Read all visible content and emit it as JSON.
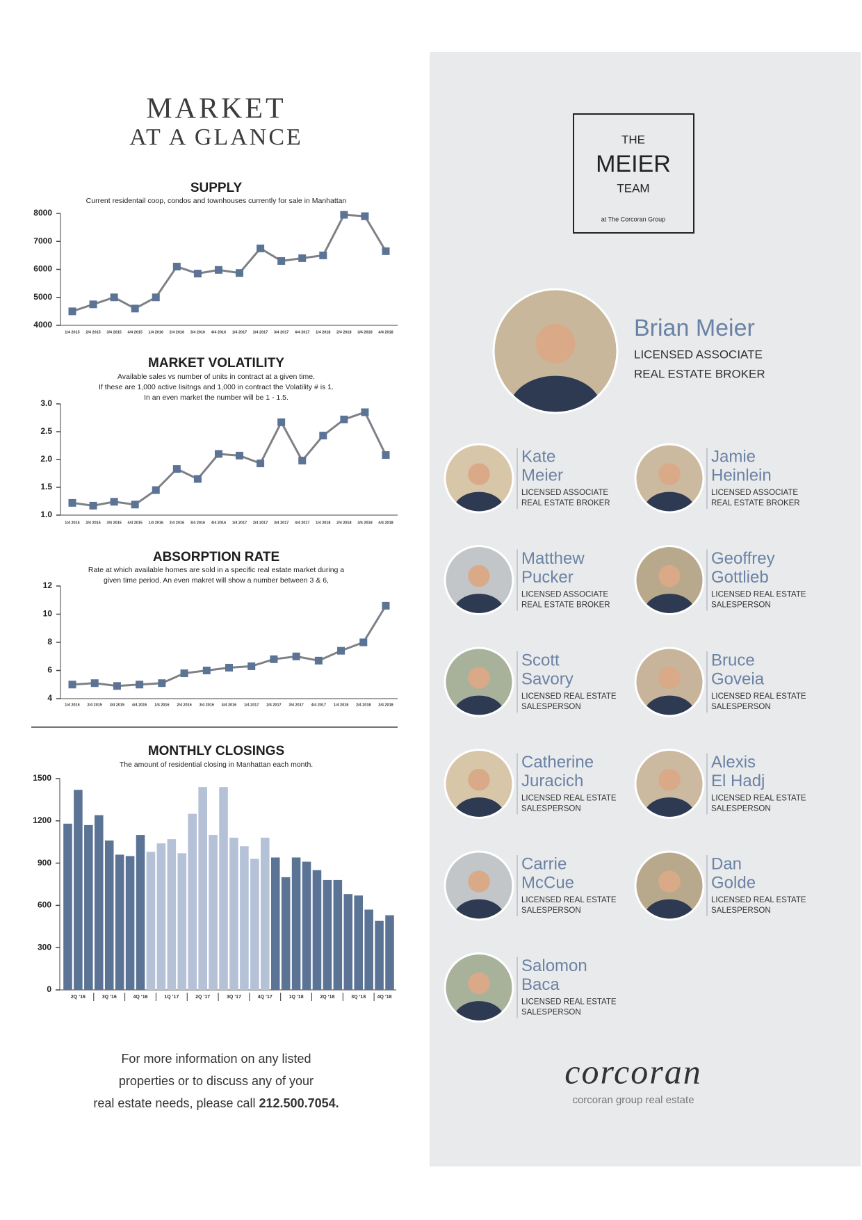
{
  "header": {
    "title_line1": "MARKET",
    "title_line2": "AT A GLANCE"
  },
  "chart_data": [
    {
      "type": "line",
      "title": "SUPPLY",
      "subtitle": [
        "Current residentail coop, condos and townhouses currently for sale in Manhattan"
      ],
      "categories": [
        "1/4 2015",
        "2/4 2015",
        "3/4 2015",
        "4/4 2015",
        "1/4 2016",
        "2/4 2016",
        "3/4 2016",
        "4/4 2016",
        "1/4 2017",
        "2/4 2017",
        "3/4 2017",
        "4/4 2017",
        "1/4 2018",
        "2/4 2018",
        "3/4 2018",
        "4/4 2018"
      ],
      "values": [
        4500,
        4750,
        5000,
        4600,
        5000,
        6100,
        5850,
        5980,
        5870,
        6750,
        6300,
        6400,
        6500,
        7950,
        7900,
        6650
      ],
      "color": "#5b7394",
      "line_color": "#7d8086",
      "ylim": [
        4000,
        8000
      ],
      "yticks": [
        4000,
        5000,
        6000,
        7000,
        8000
      ],
      "grid": false
    },
    {
      "type": "line",
      "title": "MARKET VOLATILITY",
      "subtitle": [
        "Available sales vs number of units in contract at a given time.",
        "If these are 1,000 active lisitngs and 1,000 in contract the Volatility # is 1.",
        "In an even market the number will be 1 - 1.5."
      ],
      "categories": [
        "1/4 2015",
        "2/4 2015",
        "3/4 2015",
        "4/4 2015",
        "1/4 2016",
        "2/4 2016",
        "3/4 2016",
        "4/4 2016",
        "1/4 2017",
        "2/4 2017",
        "3/4 2017",
        "4/4 2017",
        "1/4 2018",
        "2/4 2018",
        "3/4 2018",
        "4/4 2018"
      ],
      "values": [
        1.22,
        1.17,
        1.24,
        1.19,
        1.45,
        1.83,
        1.65,
        2.1,
        2.07,
        1.93,
        2.67,
        1.98,
        2.43,
        2.72,
        2.85,
        2.08
      ],
      "color": "#5b7394",
      "line_color": "#7d8086",
      "ylim": [
        1,
        3
      ],
      "yticks": [
        {
          "value": 1,
          "label": "1.0"
        },
        1.5,
        {
          "value": 2,
          "label": "2.0"
        },
        2.5,
        {
          "value": 3,
          "label": "3.0"
        }
      ],
      "grid": false
    },
    {
      "type": "line",
      "title": "ABSORPTION RATE",
      "subtitle": [
        "Rate at which available homes are sold in a specific real estate market during a",
        "given time period. An even makret will show a number between 3 & 6,"
      ],
      "categories": [
        "1/4 2015",
        "2/4 2015",
        "3/4 2015",
        "4/4 2015",
        "1/4 2016",
        "2/4 2016",
        "3/4 2016",
        "4/4 2016",
        "1/4 2017",
        "2/4 2017",
        "3/4 2017",
        "4/4 2017",
        "1/4 2018",
        "2/4 2018",
        "3/4 2018"
      ],
      "values": [
        5.0,
        5.1,
        4.9,
        5.0,
        5.1,
        5.8,
        6.0,
        6.2,
        6.3,
        6.8,
        7.0,
        6.7,
        7.4,
        8.0,
        10.6
      ],
      "color": "#5b7394",
      "line_color": "#7d8086",
      "ylim": [
        4,
        12
      ],
      "yticks": [
        4,
        6,
        8,
        10,
        12
      ],
      "grid": false
    },
    {
      "type": "bar",
      "title": "MONTHLY CLOSINGS",
      "subtitle": [
        "The amount of residential closing in Manhattan each month."
      ],
      "categories": [
        "2Q ’16",
        null,
        null,
        "3Q ’16",
        null,
        null,
        "4Q ’16",
        null,
        null,
        "1Q ’17",
        null,
        null,
        "2Q ’17",
        null,
        null,
        "3Q ’17",
        null,
        null,
        "4Q ’17",
        null,
        null,
        "1Q ’18",
        null,
        null,
        "2Q ’18",
        null,
        null,
        "3Q ’18",
        null,
        null,
        "4Q ’18",
        null
      ],
      "values": [
        1180,
        1420,
        1170,
        1240,
        1060,
        960,
        950,
        1100,
        980,
        1040,
        1070,
        970,
        1250,
        1440,
        1100,
        1440,
        1080,
        1020,
        930,
        1080,
        940,
        800,
        940,
        910,
        850,
        780,
        780,
        680,
        670,
        570,
        490,
        530
      ],
      "colors": [
        "#5b7394",
        "#5b7394",
        "#5b7394",
        "#5b7394",
        "#5b7394",
        "#5b7394",
        "#5b7394",
        "#5b7394",
        "#b4c1d6",
        "#b4c1d6",
        "#b4c1d6",
        "#b4c1d6",
        "#b4c1d6",
        "#b4c1d6",
        "#b4c1d6",
        "#b4c1d6",
        "#b4c1d6",
        "#b4c1d6",
        "#b4c1d6",
        "#b4c1d6",
        "#5b7394",
        "#5b7394",
        "#5b7394",
        "#5b7394",
        "#5b7394",
        "#5b7394",
        "#5b7394",
        "#5b7394",
        "#5b7394",
        "#5b7394",
        "#5b7394",
        "#5b7394"
      ],
      "ylim": [
        0,
        1500
      ],
      "yticks": [
        0,
        300,
        600,
        900,
        1200,
        1500
      ],
      "grid": false
    }
  ],
  "contact": {
    "line1": "For more information on any listed",
    "line2": "properties or to discuss any of your",
    "line3": "real estate needs, please call ",
    "phone": "212.500.7054."
  },
  "team": {
    "logo": {
      "the": "THE",
      "name": "MEIER",
      "team": "TEAM",
      "sub": "at The Corcoran Group"
    },
    "lead": {
      "name": "Brian Meier",
      "title_lines": [
        "LICENSED ASSOCIATE",
        "REAL ESTATE BROKER"
      ]
    },
    "members": [
      {
        "first": "Kate",
        "last": "Meier",
        "title_lines": [
          "LICENSED ASSOCIATE",
          "REAL ESTATE BROKER"
        ]
      },
      {
        "first": "Jamie",
        "last": "Heinlein",
        "title_lines": [
          "LICENSED ASSOCIATE",
          "REAL ESTATE BROKER"
        ]
      },
      {
        "first": "Matthew",
        "last": "Pucker",
        "title_lines": [
          "LICENSED ASSOCIATE",
          "REAL ESTATE BROKER"
        ]
      },
      {
        "first": "Geoffrey",
        "last": "Gottlieb",
        "title_lines": [
          "LICENSED REAL ESTATE",
          "SALESPERSON"
        ]
      },
      {
        "first": "Scott",
        "last": "Savory",
        "title_lines": [
          "LICENSED REAL ESTATE",
          "SALESPERSON"
        ]
      },
      {
        "first": "Bruce",
        "last": "Goveia",
        "title_lines": [
          "LICENSED REAL ESTATE",
          "SALESPERSON"
        ]
      },
      {
        "first": "Catherine",
        "last": "Juracich",
        "title_lines": [
          "LICENSED REAL ESTATE",
          "SALESPERSON"
        ]
      },
      {
        "first": "Alexis",
        "last": "El Hadj",
        "title_lines": [
          "LICENSED REAL ESTATE",
          "SALESPERSON"
        ]
      },
      {
        "first": "Carrie",
        "last": "McCue",
        "title_lines": [
          "LICENSED REAL ESTATE",
          "SALESPERSON"
        ]
      },
      {
        "first": "Dan",
        "last": "Golde",
        "title_lines": [
          "LICENSED REAL ESTATE",
          "SALESPERSON"
        ]
      },
      {
        "first": "Salomon",
        "last": "Baca",
        "title_lines": [
          "LICENSED REAL ESTATE",
          "SALESPERSON"
        ]
      }
    ]
  },
  "brand": {
    "name": "corcoran",
    "tagline": "corcoran group real estate"
  }
}
